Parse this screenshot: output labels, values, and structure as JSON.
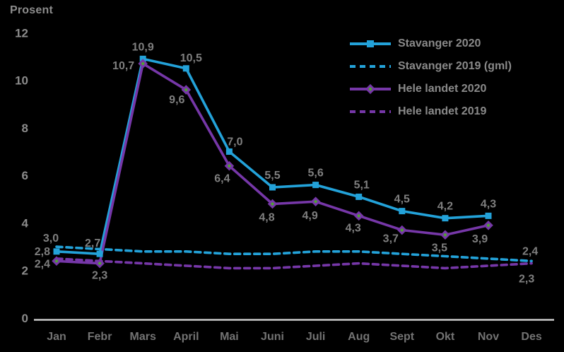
{
  "title": "Prosent",
  "colors": {
    "background": "#000000",
    "blue": "#23A2D9",
    "purple": "#7637A8",
    "marker_green": "#4FA52F",
    "label_text": "#7F7F7F",
    "tick_text": "#8C8C8C",
    "month_text": "#737373",
    "legend_text": "#8A8A8A",
    "axis_line": "#C9C9C9"
  },
  "chart_data": {
    "type": "line",
    "title": "Prosent",
    "xlabel": "",
    "ylabel": "Prosent",
    "ylim": [
      0,
      12
    ],
    "yticks": [
      0,
      2,
      4,
      6,
      8,
      10,
      12
    ],
    "grid": false,
    "legend_position": "top-right",
    "categories": [
      "Jan",
      "Febr",
      "Mars",
      "April",
      "Mai",
      "Juni",
      "Juli",
      "Aug",
      "Sept",
      "Okt",
      "Nov",
      "Des"
    ],
    "series": [
      {
        "name": "Stavanger 2020",
        "color": "#23A2D9",
        "style": "solid",
        "marker": "square",
        "values": [
          2.8,
          2.7,
          10.9,
          10.5,
          7.0,
          5.5,
          5.6,
          5.1,
          4.5,
          4.2,
          4.3,
          null
        ],
        "labels": [
          "2,8",
          "2,7",
          "10,9",
          "10,5",
          "7,0",
          "5,5",
          "5,6",
          "5,1",
          "4,5",
          "4,2",
          "4,3",
          null
        ]
      },
      {
        "name": "Stavanger 2019 (gml)",
        "color": "#23A2D9",
        "style": "dashed",
        "marker": "none",
        "values": [
          3.0,
          2.9,
          2.8,
          2.8,
          2.7,
          2.7,
          2.8,
          2.8,
          2.7,
          2.6,
          2.5,
          2.4
        ],
        "labels": [
          "3,0",
          null,
          null,
          null,
          null,
          null,
          null,
          null,
          null,
          null,
          null,
          "2,4"
        ]
      },
      {
        "name": "Hele landet 2020",
        "color": "#7637A8",
        "style": "solid",
        "marker": "diamond",
        "marker_center_color": "#4FA52F",
        "values": [
          2.4,
          2.3,
          10.7,
          9.6,
          6.4,
          4.8,
          4.9,
          4.3,
          3.7,
          3.5,
          3.9,
          null
        ],
        "labels": [
          "2,4",
          "2,3",
          "10,7",
          "9,6",
          "6,4",
          "4,8",
          "4,9",
          "4,3",
          "3,7",
          "3,5",
          "3,9",
          null
        ]
      },
      {
        "name": "Hele landet 2019",
        "color": "#7637A8",
        "style": "dashed",
        "marker": "none",
        "values": [
          2.5,
          2.4,
          2.3,
          2.2,
          2.1,
          2.1,
          2.2,
          2.3,
          2.2,
          2.1,
          2.2,
          2.3
        ],
        "labels": [
          null,
          null,
          null,
          null,
          null,
          null,
          null,
          null,
          null,
          null,
          null,
          "2,3"
        ]
      }
    ]
  }
}
